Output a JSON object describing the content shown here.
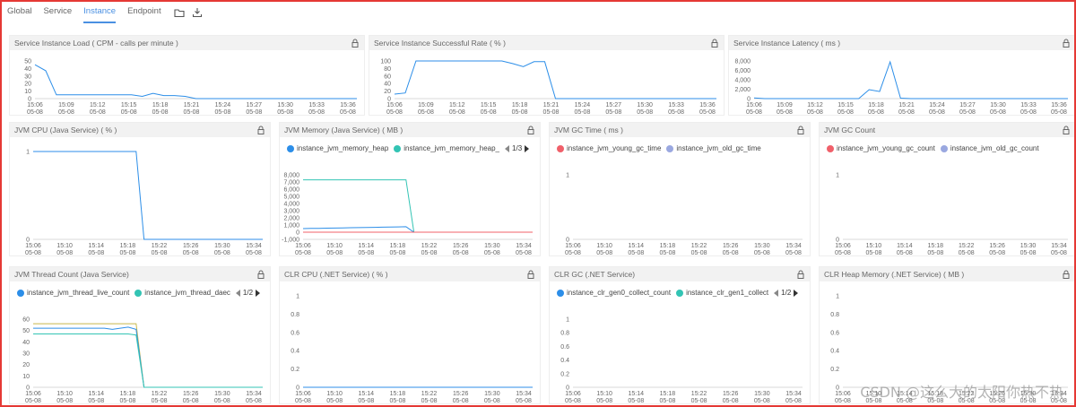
{
  "tabs": [
    {
      "label": "Global",
      "active": false
    },
    {
      "label": "Service",
      "active": false
    },
    {
      "label": "Instance",
      "active": true
    },
    {
      "label": "Endpoint",
      "active": false
    }
  ],
  "x_ticks_a": [
    "15:06",
    "15:09",
    "15:12",
    "15:15",
    "15:18",
    "15:21",
    "15:24",
    "15:27",
    "15:30",
    "15:33",
    "15:36"
  ],
  "x_ticks_b": [
    "15:06",
    "15:10",
    "15:14",
    "15:18",
    "15:22",
    "15:26",
    "15:30",
    "15:34"
  ],
  "x_date": "05-08",
  "colors": {
    "blue": "#2c8ee8",
    "teal": "#33c4b4",
    "red": "#f0606a",
    "lavender": "#9aa8e0",
    "olive": "#c8b84a",
    "green": "#5fb86a"
  },
  "panels": [
    {
      "id": "load",
      "title": "Service Instance Load ( CPM - calls per minute )",
      "ticks": "a",
      "y_ticks": [
        "50",
        "40",
        "30",
        "20",
        "10",
        "0"
      ],
      "ylim": [
        0,
        50
      ],
      "series": [
        {
          "color": "#2c8ee8",
          "values": [
            45,
            37,
            5,
            5,
            5,
            5,
            5,
            5,
            5,
            5,
            3,
            7,
            4,
            4,
            3,
            0,
            0,
            0,
            0,
            0,
            0,
            0,
            0,
            0,
            0,
            0,
            0,
            0,
            0,
            0,
            0
          ]
        }
      ]
    },
    {
      "id": "rate",
      "title": "Service Instance Successful Rate ( % )",
      "ticks": "a",
      "y_ticks": [
        "100",
        "80",
        "60",
        "40",
        "20",
        "0"
      ],
      "ylim": [
        0,
        100
      ],
      "series": [
        {
          "color": "#2c8ee8",
          "values": [
            12,
            15,
            100,
            100,
            100,
            100,
            100,
            100,
            100,
            100,
            100,
            93,
            85,
            98,
            98,
            0,
            0,
            0,
            0,
            0,
            0,
            0,
            0,
            0,
            0,
            0,
            0,
            0,
            0,
            0,
            0
          ]
        }
      ]
    },
    {
      "id": "latency",
      "title": "Service Instance Latency ( ms )",
      "ticks": "a",
      "y_ticks": [
        "8,000",
        "6,000",
        "4,000",
        "2,000",
        "0"
      ],
      "ylim": [
        0,
        8000
      ],
      "series": [
        {
          "color": "#2c8ee8",
          "values": [
            150,
            0,
            0,
            0,
            0,
            0,
            0,
            0,
            0,
            0,
            0,
            1900,
            1500,
            7800,
            100,
            0,
            0,
            0,
            0,
            0,
            0,
            0,
            0,
            0,
            0,
            0,
            0,
            0,
            0,
            0,
            0
          ]
        }
      ]
    },
    {
      "id": "jvmcpu",
      "title": "JVM CPU (Java Service) ( % )",
      "ticks": "b",
      "y_ticks": [
        "1",
        "0"
      ],
      "ylim": [
        0,
        1
      ],
      "series": [
        {
          "color": "#2c8ee8",
          "values": [
            1,
            1,
            1,
            1,
            1,
            1,
            1,
            1,
            1,
            1,
            1,
            1,
            1,
            1,
            0,
            0,
            0,
            0,
            0,
            0,
            0,
            0,
            0,
            0,
            0,
            0,
            0,
            0,
            0,
            0
          ]
        }
      ]
    },
    {
      "id": "jvmmem",
      "title": "JVM Memory (Java Service) ( MB )",
      "ticks": "b",
      "legend": [
        {
          "name": "instance_jvm_memory_heap",
          "color": "#2c8ee8"
        },
        {
          "name": "instance_jvm_memory_heap_",
          "color": "#33c4b4"
        }
      ],
      "pager": "1/3",
      "y_ticks": [
        "8,000",
        "7,000",
        "6,000",
        "5,000",
        "4,000",
        "3,000",
        "2,000",
        "1,000",
        "0",
        "-1,000"
      ],
      "ylim": [
        -1000,
        8000
      ],
      "series": [
        {
          "color": "#33c4b4",
          "values": [
            7300,
            7300,
            7300,
            7300,
            7300,
            7300,
            7300,
            7300,
            7300,
            7300,
            7300,
            7300,
            7300,
            7300,
            0,
            0,
            0,
            0,
            0,
            0,
            0,
            0,
            0,
            0,
            0,
            0,
            0,
            0,
            0,
            0
          ]
        },
        {
          "color": "#2c8ee8",
          "values": [
            500,
            520,
            540,
            560,
            580,
            600,
            620,
            640,
            660,
            680,
            700,
            720,
            740,
            760,
            0,
            0,
            0,
            0,
            0,
            0,
            0,
            0,
            0,
            0,
            0,
            0,
            0,
            0,
            0,
            0
          ]
        },
        {
          "color": "#f0606a",
          "values": [
            0,
            0,
            0,
            0,
            0,
            0,
            0,
            0,
            0,
            0,
            0,
            0,
            0,
            0,
            0,
            0,
            0,
            0,
            0,
            0,
            0,
            0,
            0,
            0,
            0,
            0,
            0,
            0,
            0,
            0
          ]
        }
      ]
    },
    {
      "id": "jvmgctime",
      "title": "JVM GC Time ( ms )",
      "ticks": "b",
      "legend": [
        {
          "name": "instance_jvm_young_gc_time",
          "color": "#f0606a"
        },
        {
          "name": "instance_jvm_old_gc_time",
          "color": "#9aa8e0"
        }
      ],
      "y_ticks": [
        "1",
        "0"
      ],
      "ylim": [
        0,
        1
      ],
      "series": []
    },
    {
      "id": "jvmgccount",
      "title": "JVM GC Count",
      "ticks": "b",
      "legend": [
        {
          "name": "instance_jvm_young_gc_count",
          "color": "#f0606a"
        },
        {
          "name": "instance_jvm_old_gc_count",
          "color": "#9aa8e0"
        }
      ],
      "y_ticks": [
        "1",
        "0"
      ],
      "ylim": [
        0,
        1
      ],
      "series": []
    },
    {
      "id": "jvmthread",
      "title": "JVM Thread Count (Java Service)",
      "ticks": "b",
      "legend": [
        {
          "name": "instance_jvm_thread_live_count",
          "color": "#2c8ee8"
        },
        {
          "name": "instance_jvm_thread_daec",
          "color": "#33c4b4"
        }
      ],
      "pager": "1/2",
      "y_ticks": [
        "60",
        "50",
        "40",
        "30",
        "20",
        "10",
        "0"
      ],
      "ylim": [
        0,
        60
      ],
      "series": [
        {
          "color": "#c8b84a",
          "values": [
            56,
            56,
            56,
            56,
            56,
            56,
            56,
            56,
            56,
            56,
            56,
            56,
            56,
            56,
            0,
            0,
            0,
            0,
            0,
            0,
            0,
            0,
            0,
            0,
            0,
            0,
            0,
            0,
            0,
            0
          ]
        },
        {
          "color": "#2c8ee8",
          "values": [
            52,
            52,
            52,
            52,
            52,
            52,
            52,
            52,
            52,
            52,
            51,
            52,
            53,
            51,
            0,
            0,
            0,
            0,
            0,
            0,
            0,
            0,
            0,
            0,
            0,
            0,
            0,
            0,
            0,
            0
          ]
        },
        {
          "color": "#33c4b4",
          "values": [
            47,
            47,
            47,
            47,
            47,
            47,
            47,
            47,
            47,
            47,
            47,
            47,
            47,
            46,
            0,
            0,
            0,
            0,
            0,
            0,
            0,
            0,
            0,
            0,
            0,
            0,
            0,
            0,
            0,
            0
          ]
        }
      ]
    },
    {
      "id": "clrcpu",
      "title": "CLR CPU (.NET Service) ( % )",
      "ticks": "b",
      "y_ticks": [
        "1",
        "0.8",
        "0.6",
        "0.4",
        "0.2",
        "0"
      ],
      "ylim": [
        0,
        1
      ],
      "series": [
        {
          "color": "#2c8ee8",
          "values": [
            0,
            0,
            0,
            0,
            0,
            0,
            0,
            0,
            0,
            0,
            0,
            0,
            0,
            0,
            0,
            0,
            0,
            0,
            0,
            0,
            0,
            0,
            0,
            0,
            0,
            0,
            0,
            0,
            0,
            0
          ]
        }
      ]
    },
    {
      "id": "clrgc",
      "title": "CLR GC (.NET Service)",
      "ticks": "b",
      "legend": [
        {
          "name": "instance_clr_gen0_collect_count",
          "color": "#2c8ee8"
        },
        {
          "name": "instance_clr_gen1_collect",
          "color": "#33c4b4"
        }
      ],
      "pager": "1/2",
      "y_ticks": [
        "1",
        "0.8",
        "0.6",
        "0.4",
        "0.2",
        "0"
      ],
      "ylim": [
        0,
        1
      ],
      "series": []
    },
    {
      "id": "clrheap",
      "title": "CLR Heap Memory (.NET Service) ( MB )",
      "ticks": "b",
      "y_ticks": [
        "1",
        "0.8",
        "0.6",
        "0.4",
        "0.2",
        "0"
      ],
      "ylim": [
        0,
        1
      ],
      "series": []
    }
  ],
  "watermark": "CSDN @这么大的太阳你热不热"
}
